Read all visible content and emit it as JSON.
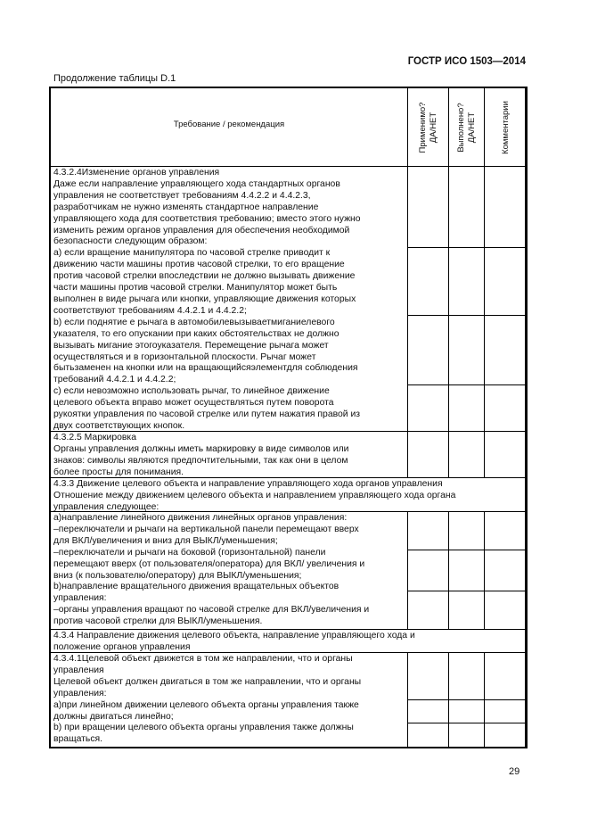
{
  "header": {
    "doc_id": "ГОСТР ИСО 1503—2014",
    "caption": "Продолжение таблицы D.1",
    "page_number": "29"
  },
  "table": {
    "columns": {
      "requirement": "Требование / рекомендация",
      "applicable": [
        "Применимо?",
        "ДА/НЕТ"
      ],
      "fulfilled": [
        "Выполнено?",
        "ДА/НЕТ"
      ],
      "comments": "Комментарии"
    },
    "rows": [
      {
        "lines": [
          "4.3.2.4Изменение органов управления",
          "Даже если направление управляющего хода стандартных органов",
          "управления не соответствует требованиям 4.4.2.2 и 4.4.2.3,",
          "разработчикам не нужно изменять стандартное направление",
          "управляющего хода для соответствия требованию; вместо этого нужно",
          "изменить режим органов управления для обеспечения необходимой",
          "безопасности следующим образом:",
          "а) если вращение манипулятора по часовой стрелке приводит к",
          "движению части машины против часовой стрелки, то его вращение",
          "против часовой стрелки впоследствии не должно вызывать движение",
          "части  машины против часовой стрелки. Манипулятор может быть",
          "выполнен в виде рычага или кнопки, управляющие движения которых",
          "соответствуют требованиям 4.4.2.1 и 4.4.2.2;",
          "b) если поднятие е рычага в автомобилевызываетмиганиелевого",
          "указателя, то его опускании при каких обстоятельствах не должно",
          "вызывать мигание этогоуказателя. Перемещение рычага может",
          "осуществляться и в горизонтальной плоскости. Рычаг может",
          "бытьзаменен на кнопки или на вращающийсяэлементдля соблюдения",
          "требований 4.4.2.1 и 4.4.2.2;",
          "с) если невозможно использовать рычаг, то линейное движение",
          "целевого объекта вправо может осуществляться путем поворота",
          "рукоятки управления по часовой стрелке или путем нажатия правой из",
          "двух соответствующих кнопок."
        ]
      },
      {
        "lines": [
          "4.3.2.5 Маркировка",
          "Органы управления должны иметь маркировку в виде символов или",
          "знаков: символы являются предпочтительными, так как они в целом",
          "более просты для понимания."
        ]
      },
      {
        "lines": [
          "4.3.3 Движение целевого объекта и направление управляющего хода органов управления",
          "Отношение между движением целевого объекта и направлением управляющего хода органа",
          "управления следующее:"
        ]
      },
      {
        "lines": [
          "а)направление линейного движения линейных органов управления:",
          "–переключатели и рычаги на вертикальной панели перемещают вверх",
          "для ВКЛ/увеличения и вниз для ВЫКЛ/уменьшения;",
          "–переключатели и рычаги на боковой (горизонтальной) панели",
          "перемещают вверх (от пользователя/оператора) для ВКЛ/ увеличения и",
          "вниз (к пользователю/оператору) для ВЫКЛ/уменьшения;",
          "b)направление вращательного движения вращательных объектов",
          "управления:",
          "–органы управления вращают по часовой стрелке для ВКЛ/увеличения и",
          "против часовой стрелки для ВЫКЛ/уменьшения."
        ]
      },
      {
        "lines": [
          "4.3.4 Направление движения целевого объекта, направление управляющего хода и",
          "положение органов управления"
        ]
      },
      {
        "lines": [
          "4.3.4.1Целевой объект движется в том же направлении, что и органы",
          "управления",
          "Целевой объект должен двигаться в том же направлении, что и органы",
          "управления:",
          "а)при линейном движении целевого объекта органы управления также",
          "должны двигаться линейно;",
          "b) при вращении целевого объекта органы управления также должны",
          "вращаться."
        ]
      }
    ]
  }
}
